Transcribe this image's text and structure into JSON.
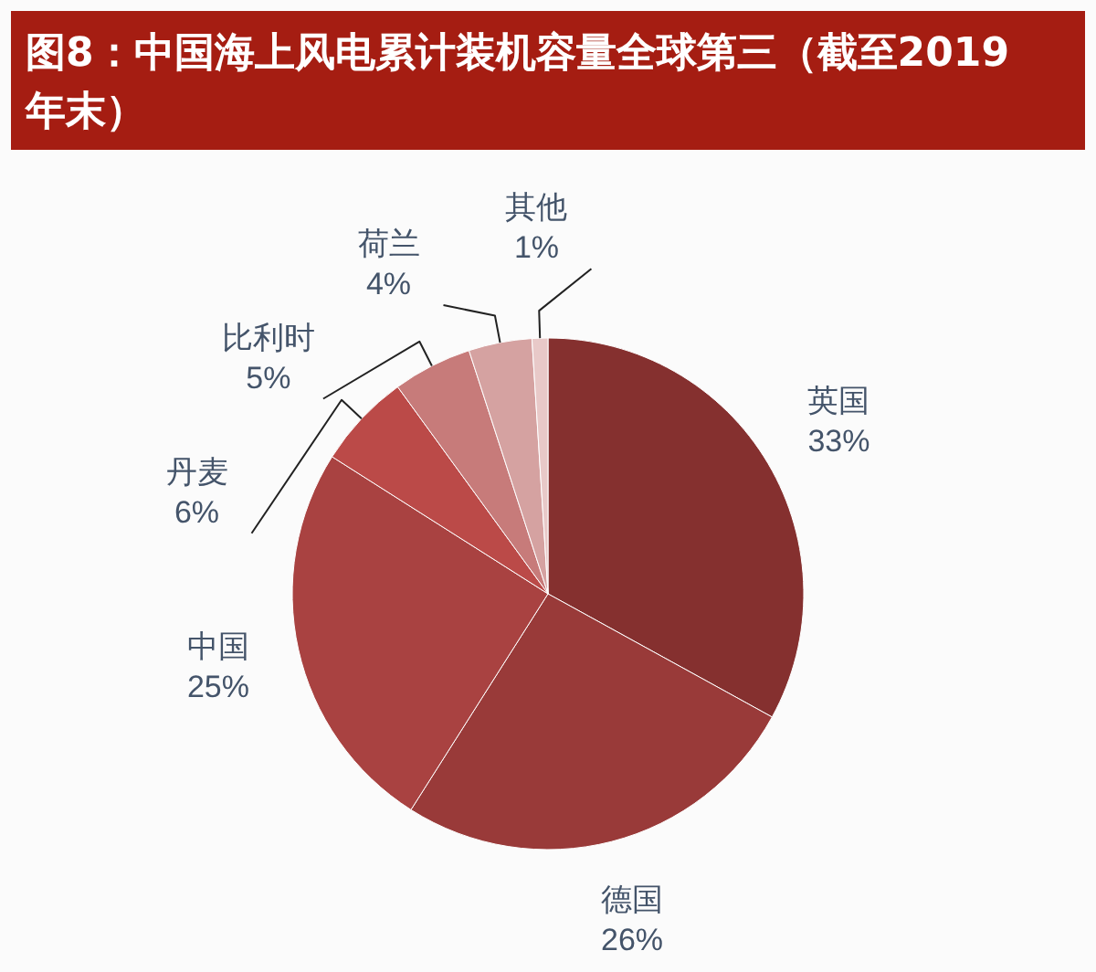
{
  "chart_data": {
    "type": "pie",
    "title": "图8：中国海上风电累计装机容量全球第三（截至2019年末）",
    "categories": [
      "英国",
      "德国",
      "中国",
      "丹麦",
      "比利时",
      "荷兰",
      "其他"
    ],
    "values": [
      33,
      26,
      25,
      6,
      5,
      4,
      1
    ],
    "value_labels": [
      "33%",
      "26%",
      "25%",
      "6%",
      "5%",
      "4%",
      "1%"
    ],
    "colors": [
      "#85302f",
      "#993a39",
      "#a94241",
      "#bb4a48",
      "#c77b7a",
      "#d5a2a1",
      "#e8c9c8"
    ]
  }
}
